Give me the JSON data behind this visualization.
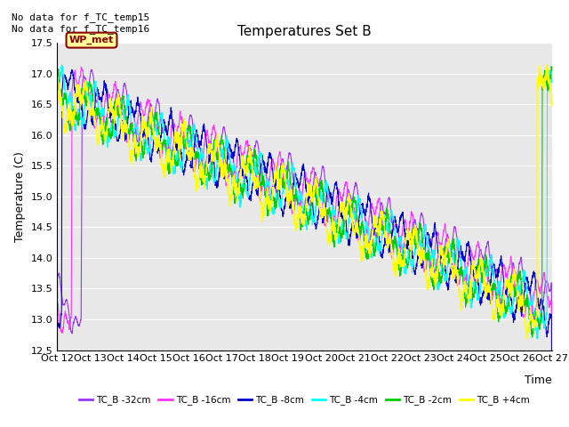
{
  "title": "Temperatures Set B",
  "ylabel": "Temperature (C)",
  "xlabel": "Time",
  "ylim": [
    12.5,
    17.5
  ],
  "yticks": [
    12.5,
    13.0,
    13.5,
    14.0,
    14.5,
    15.0,
    15.5,
    16.0,
    16.5,
    17.0,
    17.5
  ],
  "xtick_labels": [
    "Oct 12",
    "Oct 13",
    "Oct 14",
    "Oct 15",
    "Oct 16",
    "Oct 17",
    "Oct 18",
    "Oct 19",
    "Oct 20",
    "Oct 21",
    "Oct 22",
    "Oct 23",
    "Oct 24",
    "Oct 25",
    "Oct 26",
    "Oct 27"
  ],
  "annotation_text": "No data for f_TC_temp15\nNo data for f_TC_temp16",
  "wp_met_label": "WP_met",
  "legend_entries": [
    "TC_B -32cm",
    "TC_B -16cm",
    "TC_B -8cm",
    "TC_B -4cm",
    "TC_B -2cm",
    "TC_B +4cm"
  ],
  "line_colors": [
    "#9933FF",
    "#FF33FF",
    "#0000CC",
    "#00FFFF",
    "#00CC00",
    "#FFFF00"
  ],
  "plot_bg_color": "#E8E8E8",
  "n_points": 3600,
  "seed": 42
}
